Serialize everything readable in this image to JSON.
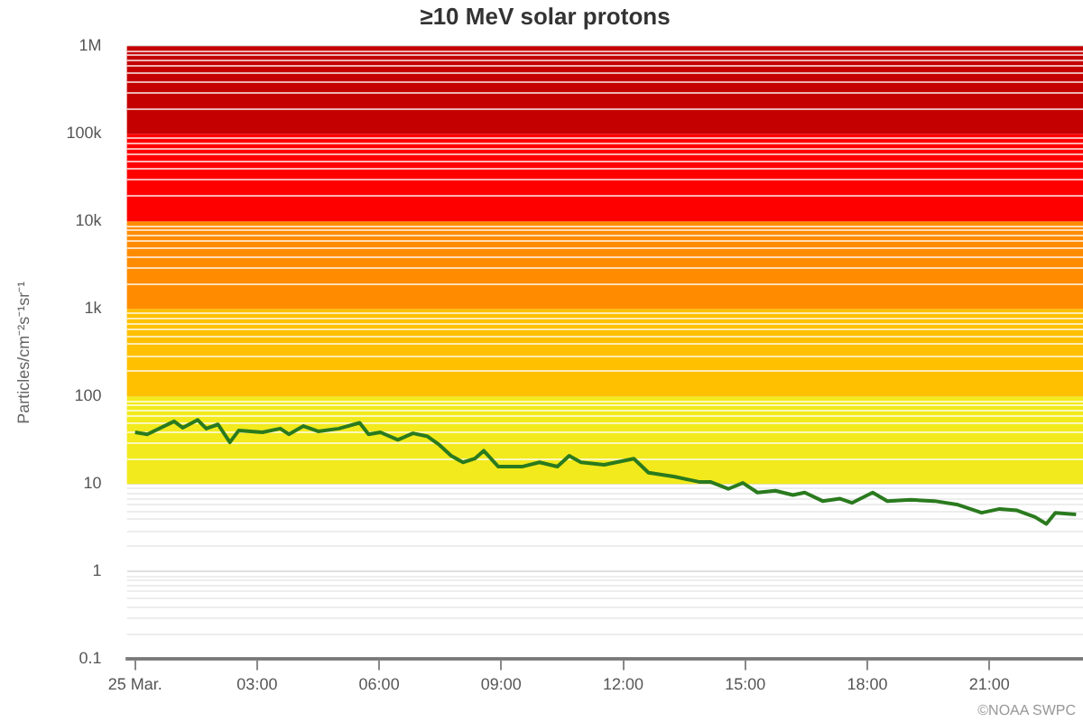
{
  "chart_data": {
    "type": "line",
    "title": "≥10 MeV solar protons",
    "ylabel": "Particles/cm⁻²s⁻¹sr⁻¹",
    "log": "y",
    "grid": "y",
    "legend": false,
    "marker": "none",
    "line_style": "solid",
    "xlim": [
      -0.2,
      23.3
    ],
    "xticks": [
      {
        "value": 0,
        "label": "25 Mar."
      },
      {
        "value": 3,
        "label": "03:00"
      },
      {
        "value": 6,
        "label": "06:00"
      },
      {
        "value": 9,
        "label": "09:00"
      },
      {
        "value": 12,
        "label": "12:00"
      },
      {
        "value": 15,
        "label": "15:00"
      },
      {
        "value": 18,
        "label": "18:00"
      },
      {
        "value": 21,
        "label": "21:00"
      }
    ],
    "ylim": [
      0.1,
      1000000
    ],
    "yticks": [
      0.1,
      1,
      10,
      100,
      {
        "value": 1000,
        "label": "1k"
      },
      {
        "value": 10000,
        "label": "10k"
      },
      {
        "value": 100000,
        "label": "100k"
      },
      {
        "value": 1000000,
        "label": "1M"
      }
    ],
    "bands": [
      {
        "axis": "y",
        "from": 10,
        "to": 100,
        "color": "#f2ea1c"
      },
      {
        "axis": "y",
        "from": 100,
        "to": 1000,
        "color": "#ffc000"
      },
      {
        "axis": "y",
        "from": 1000,
        "to": 10000,
        "color": "#ff8c00"
      },
      {
        "axis": "y",
        "from": 10000,
        "to": 100000,
        "color": "#ff0000"
      },
      {
        "axis": "y",
        "from": 100000,
        "to": 1000000,
        "color": "#c40000"
      }
    ],
    "series": [
      {
        "color": "#2a7a1e",
        "x": [
          0,
          0.3,
          0.96,
          1.17,
          1.54,
          1.75,
          2.04,
          2.33,
          2.55,
          3.13,
          3.57,
          3.78,
          4.14,
          4.5,
          5.01,
          5.52,
          5.74,
          6.03,
          6.46,
          6.83,
          7.19,
          7.48,
          7.77,
          8.06,
          8.35,
          8.57,
          8.93,
          9.51,
          9.94,
          10.38,
          10.67,
          10.96,
          11.53,
          12.26,
          12.62,
          13.27,
          13.86,
          14.14,
          14.58,
          14.94,
          15.3,
          15.74,
          16.17,
          16.46,
          16.9,
          17.33,
          17.62,
          18.13,
          18.49,
          19.07,
          19.65,
          20.23,
          20.81,
          21.25,
          21.68,
          22.12,
          22.4,
          22.62,
          23.13
        ],
        "values": [
          39,
          37,
          52,
          44,
          54,
          43,
          48,
          30,
          41,
          39,
          43,
          37,
          46,
          40,
          43,
          50,
          37,
          39,
          32,
          38,
          35,
          28,
          21,
          17.7,
          19.5,
          24,
          15.8,
          15.8,
          17.7,
          15.8,
          21,
          17.7,
          16.6,
          19.5,
          13.5,
          12.1,
          10.6,
          10.6,
          8.8,
          10.3,
          8.0,
          8.4,
          7.5,
          8.0,
          6.4,
          6.8,
          6.1,
          8.0,
          6.4,
          6.6,
          6.4,
          5.8,
          4.7,
          5.2,
          5.0,
          4.2,
          3.5,
          4.7,
          4.5
        ]
      }
    ],
    "annotations": [
      "©NOAA SWPC"
    ]
  }
}
